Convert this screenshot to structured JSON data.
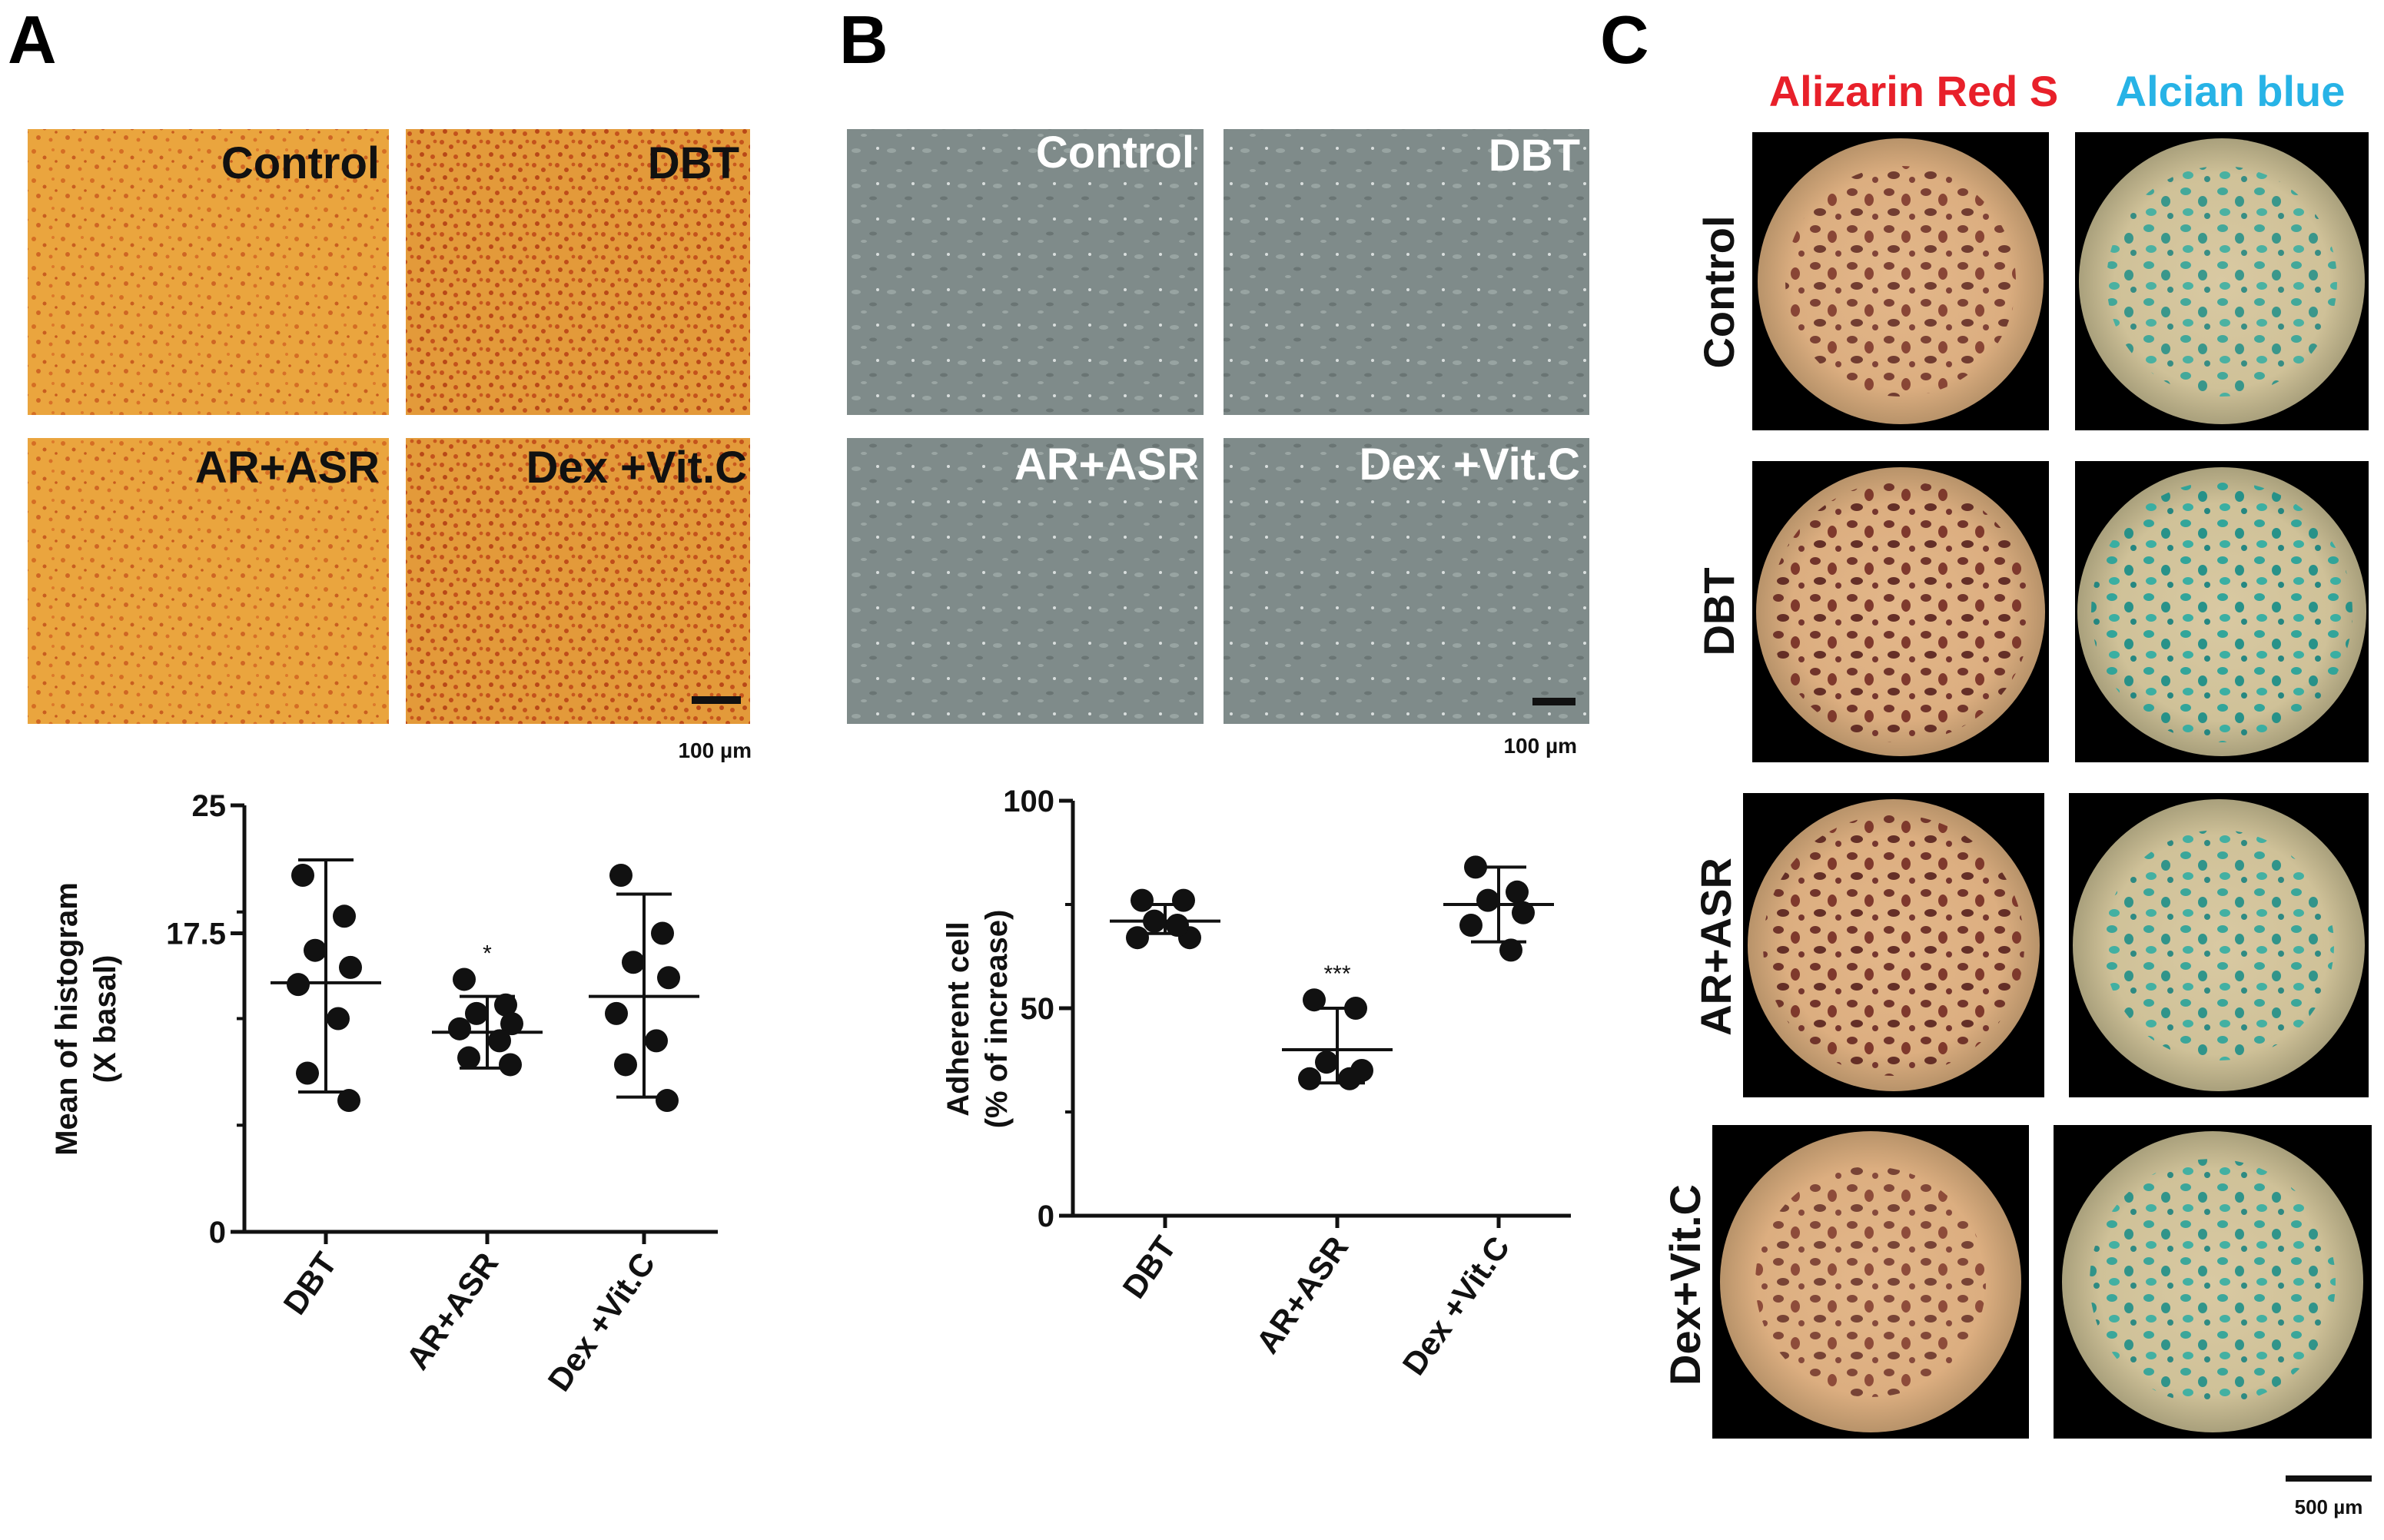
{
  "panels": {
    "A": {
      "letter": "A"
    },
    "B": {
      "letter": "B"
    },
    "C": {
      "letter": "C"
    }
  },
  "micrographs": {
    "A_labels": [
      "Control",
      "DBT",
      "AR+ASR",
      "Dex +Vit.C"
    ],
    "B_labels": [
      "Control",
      "DBT",
      "AR+ASR",
      "Dex +Vit.C"
    ],
    "scale_A": "100 µm",
    "scale_B": "100 µm",
    "colors": {
      "stain_A": "#e8a23a",
      "phase_B": "#7f8a88"
    }
  },
  "panelC": {
    "header_alizarin": "Alizarin Red S",
    "header_alcian": "Alcian blue",
    "header_alizarin_color": "#e8202a",
    "header_alcian_color": "#27b3e6",
    "row_labels": [
      "Control",
      "DBT",
      "AR+ASR",
      "Dex+Vit.C"
    ],
    "scale": "500 µm"
  },
  "chart_data": [
    {
      "type": "scatter",
      "panel": "A",
      "categories": [
        "DBT",
        "AR+ASR",
        "Dex +Vit.C"
      ],
      "ylabel": "Mean of histogram",
      "ylabel2": "(X basal)",
      "ylim": [
        0,
        25
      ],
      "yticks": [
        "0",
        "17.5",
        "25"
      ],
      "ytick_values": [
        0,
        17.5,
        25
      ],
      "series": [
        {
          "category": "DBT",
          "points": [
            20.9,
            18.5,
            16.5,
            15.5,
            14.5,
            12.5,
            9.3,
            7.7
          ],
          "mean": 14.6,
          "sd_low": 8.2,
          "sd_high": 21.8,
          "annotation": ""
        },
        {
          "category": "AR+ASR",
          "points": [
            14.8,
            13.3,
            12.8,
            12.2,
            11.9,
            11.2,
            10.2,
            9.8
          ],
          "mean": 11.7,
          "sd_low": 9.6,
          "sd_high": 13.8,
          "annotation": "*"
        },
        {
          "category": "Dex +Vit.C",
          "points": [
            20.9,
            17.5,
            15.8,
            14.9,
            12.8,
            11.2,
            9.8,
            7.7
          ],
          "mean": 13.8,
          "sd_low": 7.9,
          "sd_high": 19.8,
          "annotation": ""
        }
      ]
    },
    {
      "type": "scatter",
      "panel": "B",
      "categories": [
        "DBT",
        "AR+ASR",
        "Dex +Vit.C"
      ],
      "ylabel": "Adherent cell",
      "ylabel2": "(% of increase)",
      "ylim": [
        0,
        100
      ],
      "yticks": [
        "0",
        "50",
        "100"
      ],
      "ytick_values": [
        0,
        50,
        100
      ],
      "series": [
        {
          "category": "DBT",
          "points": [
            76,
            76,
            71,
            67,
            67,
            70
          ],
          "mean": 71,
          "sd_low": 68,
          "sd_high": 75,
          "annotation": ""
        },
        {
          "category": "AR+ASR",
          "points": [
            52,
            50,
            37,
            35,
            33,
            33
          ],
          "mean": 40,
          "sd_low": 32,
          "sd_high": 50,
          "annotation": "***"
        },
        {
          "category": "Dex +Vit.C",
          "points": [
            84,
            78,
            76,
            73,
            70,
            64
          ],
          "mean": 75,
          "sd_low": 66,
          "sd_high": 84,
          "annotation": ""
        }
      ]
    }
  ]
}
